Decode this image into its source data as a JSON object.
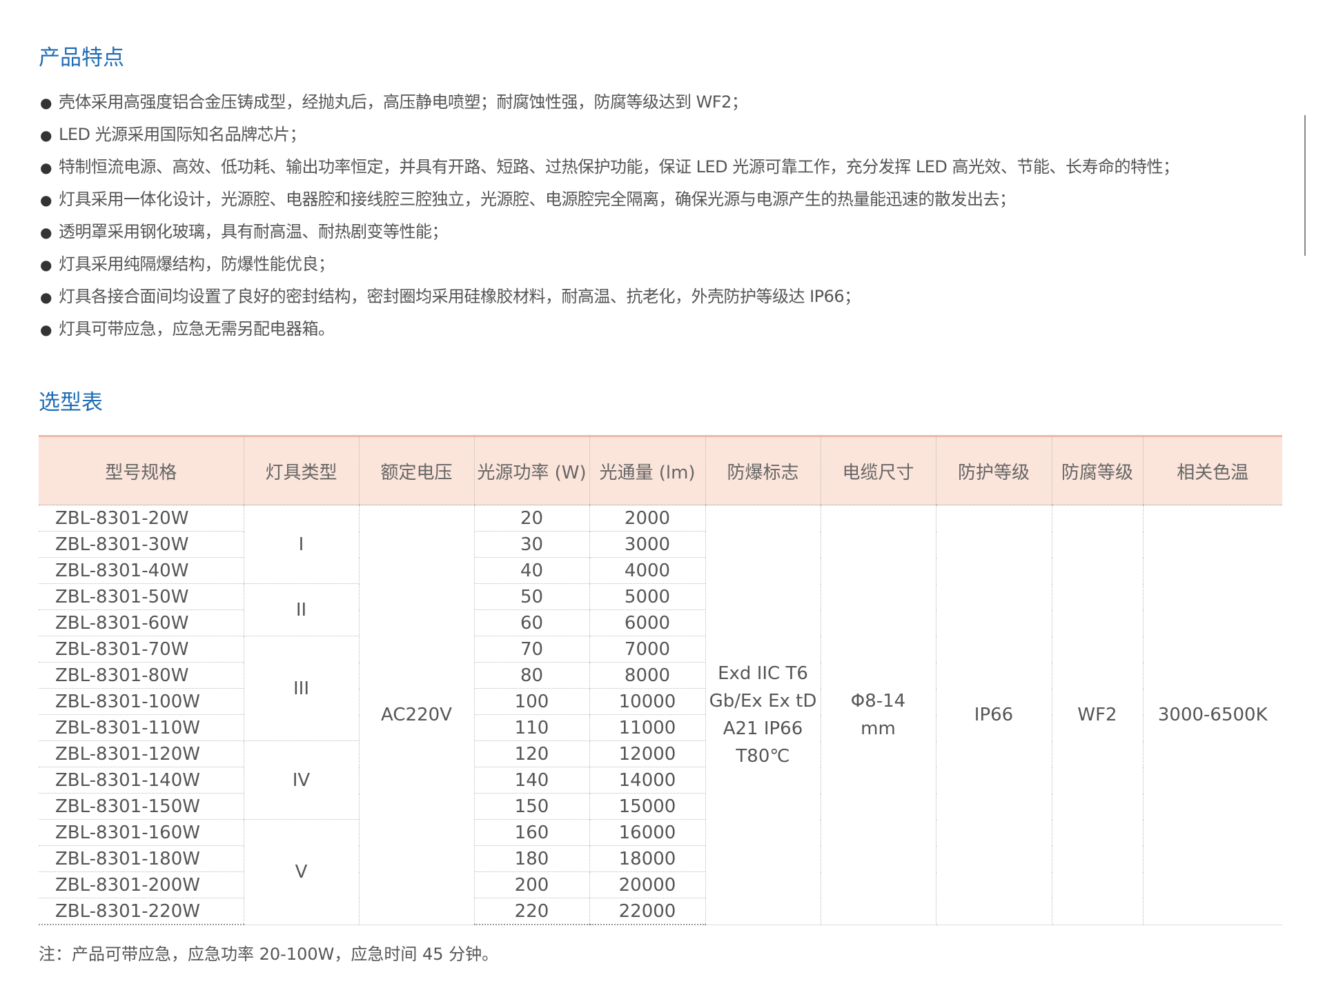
{
  "features": {
    "title": "产品特点",
    "items": [
      "壳体采用高强度铝合金压铸成型，经抛丸后，高压静电喷塑；耐腐蚀性强，防腐等级达到 WF2；",
      "LED 光源采用国际知名品牌芯片；",
      "特制恒流电源、高效、低功耗、输出功率恒定，并具有开路、短路、过热保护功能，保证 LED 光源可靠工作，充分发挥 LED 高光效、节能、长寿命的特性；",
      "灯具采用一体化设计，光源腔、电器腔和接线腔三腔独立，光源腔、电源腔完全隔离，确保光源与电源产生的热量能迅速的散发出去；",
      "透明罩采用钢化玻璃，具有耐高温、耐热剧变等性能；",
      "灯具采用纯隔爆结构，防爆性能优良；",
      "灯具各接合面间均设置了良好的密封结构，密封圈均采用硅橡胶材料，耐高温、抗老化，外壳防护等级达 IP66；",
      "灯具可带应急，应急无需另配电器箱。"
    ]
  },
  "table": {
    "title": "选型表",
    "headers": [
      "型号规格",
      "灯具类型",
      "额定电压",
      "光源功率 (W)",
      "光通量 (lm)",
      "防爆标志",
      "电缆尺寸",
      "防护等级",
      "防腐等级",
      "相关色温"
    ],
    "rows": [
      [
        "ZBL-8301-20W",
        "I",
        20,
        2000
      ],
      [
        "ZBL-8301-30W",
        null,
        30,
        3000
      ],
      [
        "ZBL-8301-40W",
        null,
        40,
        4000
      ],
      [
        "ZBL-8301-50W",
        "II",
        50,
        5000
      ],
      [
        "ZBL-8301-60W",
        null,
        60,
        6000
      ],
      [
        "ZBL-8301-70W",
        "III",
        70,
        7000
      ],
      [
        "ZBL-8301-80W",
        null,
        80,
        8000
      ],
      [
        "ZBL-8301-100W",
        null,
        100,
        10000
      ],
      [
        "ZBL-8301-110W",
        null,
        110,
        11000
      ],
      [
        "ZBL-8301-120W",
        "IV",
        120,
        12000
      ],
      [
        "ZBL-8301-140W",
        null,
        140,
        14000
      ],
      [
        "ZBL-8301-150W",
        null,
        150,
        15000
      ],
      [
        "ZBL-8301-160W",
        "V",
        160,
        16000
      ],
      [
        "ZBL-8301-180W",
        null,
        180,
        18000
      ],
      [
        "ZBL-8301-200W",
        null,
        200,
        20000
      ],
      [
        "ZBL-8301-220W",
        null,
        220,
        22000
      ]
    ],
    "shared": {
      "voltage": "AC220V",
      "ex_mark": [
        "Exd IIC T6",
        "Gb/Ex Ex tD",
        "A21 IP66",
        "T80℃"
      ],
      "cable": [
        "Φ8-14",
        "mm"
      ],
      "protection": "IP66",
      "anticorrosion": "WF2",
      "color_temp": "3000-6500K"
    }
  },
  "note": "注：产品可带应急，应急功率 20-100W，应急时间 45 分钟。"
}
